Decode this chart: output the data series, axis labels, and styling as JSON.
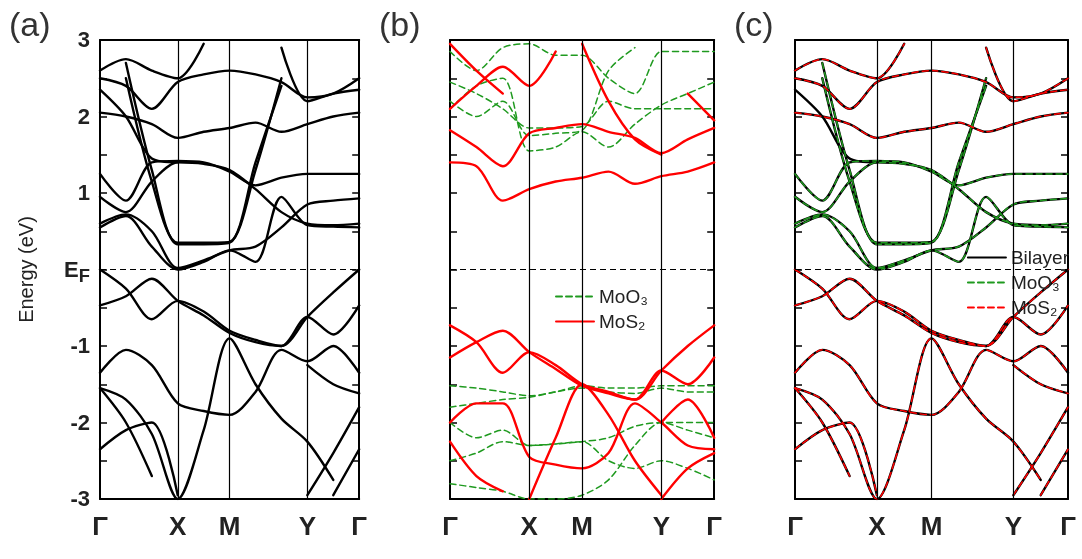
{
  "chart_data": [
    {
      "type": "line",
      "title": "(a)",
      "ylabel": "Energy (eV)",
      "categories": [
        "Γ",
        null,
        null,
        "X",
        null,
        "M",
        null,
        null,
        "Y",
        null,
        "Γ"
      ],
      "ylim": [
        -3,
        3
      ],
      "yticks": [
        -3,
        {
          "value": -2.5,
          "label": null
        },
        -2,
        {
          "value": -1.5,
          "label": null
        },
        -1,
        {
          "value": -0.5,
          "label": null
        },
        {
          "value": 0,
          "label": "E$_{F}$"
        },
        {
          "value": 0.5,
          "label": null
        },
        1,
        {
          "value": 1.5,
          "label": null
        },
        2,
        {
          "value": 2.5,
          "label": null
        },
        3
      ],
      "grid": false,
      "marker": "none",
      "line_style": "solid",
      "ref_lines": [
        {
          "axis": "x",
          "value": "X",
          "label": null,
          "color": "#000000",
          "line_style": "solid"
        },
        {
          "axis": "x",
          "value": "M",
          "label": null,
          "color": "#000000",
          "line_style": "solid"
        },
        {
          "axis": "x",
          "value": "Y",
          "label": null,
          "color": "#000000",
          "line_style": "solid"
        },
        {
          "axis": "y",
          "value": 0,
          "label": null,
          "color": "#000000",
          "line_style": "dashed"
        }
      ],
      "series": [
        {
          "color": "#000000",
          "values": [
            0,
            -0.25,
            -0.65,
            -0.41,
            -0.55,
            -0.8,
            -0.92,
            -1.0,
            -0.62,
            -0.85,
            -0.47
          ]
        },
        {
          "color": "#000000",
          "values": [
            -0.47,
            -0.35,
            -0.12,
            -0.41,
            -0.6,
            -0.83,
            -0.95,
            -1.0,
            -0.62,
            -0.3,
            0
          ]
        },
        {
          "color": "#000000",
          "values": [
            -1.35,
            -1.05,
            -1.25,
            -1.75,
            -1.85,
            -1.9,
            -1.6,
            -1.05,
            -1.2,
            -1.0,
            -1.35
          ]
        },
        {
          "color": "#000000",
          "values": [
            -1.55,
            -1.7,
            -2.15,
            -3,
            -2.1,
            -0.9,
            -1.5,
            -1.95,
            -2.25,
            -2.75,
            null
          ]
        },
        {
          "color": "#000000",
          "values": [
            -1.55,
            -2.0,
            -2.7,
            null,
            null,
            null,
            null,
            null,
            null,
            null,
            null
          ]
        },
        {
          "color": "#000000",
          "values": [
            -2.35,
            -2.1,
            -2.0,
            -2.95,
            null,
            null,
            null,
            null,
            null,
            null,
            null
          ]
        },
        {
          "color": "#000000",
          "values": [
            null,
            null,
            null,
            null,
            null,
            null,
            null,
            null,
            -2.95,
            -2.4,
            -1.8
          ]
        },
        {
          "color": "#000000",
          "values": [
            null,
            null,
            null,
            null,
            null,
            null,
            null,
            null,
            null,
            -2.95,
            -2.35
          ]
        },
        {
          "color": "#000000",
          "values": [
            null,
            null,
            null,
            null,
            null,
            null,
            null,
            null,
            -1.25,
            -1.5,
            -1.62
          ]
        },
        {
          "color": "#000000",
          "values": [
            0.55,
            0.7,
            0.3,
            0,
            0.1,
            0.25,
            0.1,
            0.95,
            0.58,
            0.56,
            0.55
          ]
        },
        {
          "color": "#000000",
          "values": [
            0.6,
            0.72,
            0.5,
            0.02,
            0.12,
            0.25,
            0.3,
            0.55,
            0.85,
            0.9,
            0.93
          ]
        },
        {
          "color": "#000000",
          "values": [
            0.95,
            0.75,
            1.15,
            1.4,
            1.38,
            1.3,
            1.05,
            0.75,
            0.6,
            0.58,
            0.6
          ]
        },
        {
          "color": "#000000",
          "values": [
            1.25,
            0.9,
            1.4,
            1.42,
            1.4,
            1.28,
            1.1,
            1.2,
            1.25,
            1.25,
            1.25
          ]
        },
        {
          "color": "#000000",
          "values": [
            null,
            2.7,
            1.3,
            0.33,
            0.33,
            0.35,
            1.3,
            2.5,
            null,
            null,
            null
          ]
        },
        {
          "color": "#000000",
          "values": [
            null,
            2.5,
            1.15,
            0.35,
            0.35,
            0.36,
            1.4,
            2.4,
            null,
            null,
            null
          ]
        },
        {
          "color": "#000000",
          "values": [
            2.05,
            2.0,
            1.9,
            1.72,
            1.8,
            1.85,
            1.92,
            1.8,
            1.9,
            2.0,
            2.05
          ]
        },
        {
          "color": "#000000",
          "values": [
            2.35,
            2.0,
            1.45,
            1.4,
            null,
            null,
            null,
            null,
            null,
            null,
            null
          ]
        },
        {
          "color": "#000000",
          "values": [
            2.5,
            2.4,
            2.1,
            2.45,
            2.55,
            2.6,
            2.55,
            2.45,
            2.25,
            2.3,
            2.5
          ]
        },
        {
          "color": "#000000",
          "values": [
            2.6,
            2.75,
            2.6,
            2.5,
            2.95,
            null,
            null,
            2.9,
            2.2,
            2.3,
            2.35
          ]
        }
      ]
    },
    {
      "type": "line",
      "title": "(b)",
      "categories": [
        "Γ",
        null,
        null,
        "X",
        null,
        "M",
        null,
        null,
        "Y",
        null,
        "Γ"
      ],
      "ylim": [
        -3,
        3
      ],
      "yticks": [
        -3,
        {
          "value": -2.5,
          "label": null
        },
        -2,
        {
          "value": -1.5,
          "label": null
        },
        -1,
        {
          "value": -0.5,
          "label": null
        },
        {
          "value": 0,
          "label": null
        },
        {
          "value": 0.5,
          "label": null
        },
        1,
        {
          "value": 1.5,
          "label": null
        },
        2,
        {
          "value": 2.5,
          "label": null
        },
        3
      ],
      "tick_labels": "x",
      "grid": false,
      "marker": "none",
      "legend": "center",
      "ref_lines": [
        {
          "axis": "x",
          "value": "X",
          "label": null,
          "color": "#000000",
          "line_style": "solid"
        },
        {
          "axis": "x",
          "value": "M",
          "label": null,
          "color": "#000000",
          "line_style": "solid"
        },
        {
          "axis": "x",
          "value": "Y",
          "label": null,
          "color": "#000000",
          "line_style": "solid"
        },
        {
          "axis": "y",
          "value": 0,
          "label": null,
          "color": "#000000",
          "line_style": "dashed"
        }
      ],
      "series": [
        {
          "name": "MoO₃",
          "color": "#1f9a1f",
          "line_style": "dashed",
          "values": [
            2.85,
            2.6,
            2.9,
            2.95,
            2.8,
            2.8,
            2.5,
            2.3,
            2.85,
            2.85,
            2.85
          ]
        },
        {
          "color": "#1f9a1f",
          "line_style": "dashed",
          "values": [
            2.45,
            2.3,
            2.1,
            1.85,
            1.85,
            1.87,
            2.2,
            2.1,
            2.1,
            2.1,
            2.1
          ]
        },
        {
          "color": "#1f9a1f",
          "line_style": "dashed",
          "values": [
            2.1,
            2.4,
            2.5,
            1.55,
            1.6,
            1.8,
            1.6,
            1.9,
            2.15,
            2.3,
            2.45
          ]
        },
        {
          "color": "#1f9a1f",
          "line_style": "dashed",
          "values": [
            2.2,
            2.0,
            2.2,
            1.75,
            1.78,
            1.82,
            2.6,
            2.9,
            null,
            null,
            null
          ]
        },
        {
          "color": "#1f9a1f",
          "line_style": "dashed",
          "values": [
            -1.52,
            -1.55,
            -1.6,
            -1.65,
            -1.6,
            -1.52,
            -1.55,
            -1.55,
            -1.52,
            -1.52,
            -1.52
          ]
        },
        {
          "color": "#1f9a1f",
          "line_style": "dashed",
          "values": [
            -1.8,
            -1.75,
            -1.7,
            -1.67,
            -1.6,
            -1.55,
            -1.6,
            -1.62,
            -1.55,
            -1.6,
            -1.6
          ]
        },
        {
          "color": "#1f9a1f",
          "line_style": "dashed",
          "values": [
            -2.0,
            -2.2,
            -2.1,
            -2.3,
            -2.28,
            -2.25,
            -2.2,
            -2.05,
            -2.0,
            -2.0,
            -2.0
          ]
        },
        {
          "color": "#1f9a1f",
          "line_style": "dashed",
          "values": [
            -2.5,
            -2.4,
            -2.25,
            -2.3,
            -2.28,
            -2.25,
            -2.5,
            -2.6,
            -2.5,
            -2.6,
            -2.75
          ]
        },
        {
          "color": "#1f9a1f",
          "line_style": "dashed",
          "values": [
            -2.8,
            -2.85,
            -2.9,
            -3,
            -3,
            -2.95,
            -2.75,
            -2.3,
            -2.0,
            -2.1,
            -2.2
          ]
        },
        {
          "name": "MoS₂",
          "color": "#ff0000",
          "line_style": "solid",
          "values": [
            -0.73,
            -0.95,
            -1.35,
            -1.08,
            -1.25,
            -1.5,
            -1.6,
            -1.7,
            -1.32,
            -1.5,
            -1.15
          ]
        },
        {
          "color": "#ff0000",
          "line_style": "solid",
          "values": [
            -1.15,
            -0.95,
            -0.8,
            -1.08,
            -1.3,
            -1.52,
            -1.62,
            -1.7,
            -1.32,
            -1.0,
            -0.73
          ]
        },
        {
          "color": "#ff0000",
          "line_style": "solid",
          "values": [
            -2.0,
            -1.75,
            -1.75,
            -2.45,
            -2.55,
            -2.6,
            -2.4,
            -1.75,
            -2.0,
            -2.3,
            -2.35
          ]
        },
        {
          "color": "#ff0000",
          "line_style": "solid",
          "values": [
            null,
            null,
            null,
            -3,
            -2.2,
            -1.5,
            -1.9,
            -2.5,
            -2.95,
            null,
            null
          ]
        },
        {
          "color": "#ff0000",
          "line_style": "solid",
          "values": [
            null,
            null,
            null,
            null,
            null,
            null,
            null,
            null,
            -2.0,
            -1.7,
            -2.2
          ]
        },
        {
          "color": "#ff0000",
          "line_style": "solid",
          "values": [
            -2.25,
            -2.7,
            -2.9,
            null,
            null,
            null,
            null,
            null,
            null,
            null,
            null
          ]
        },
        {
          "color": "#ff0000",
          "line_style": "solid",
          "values": [
            null,
            null,
            null,
            null,
            null,
            null,
            null,
            null,
            -3,
            -2.6,
            -2.4
          ]
        },
        {
          "color": "#ff0000",
          "line_style": "solid",
          "values": [
            1.4,
            1.35,
            0.9,
            1.05,
            1.15,
            1.2,
            1.28,
            1.12,
            1.22,
            1.28,
            1.4
          ]
        },
        {
          "color": "#ff0000",
          "line_style": "solid",
          "values": [
            1.82,
            1.6,
            1.35,
            1.78,
            1.85,
            1.9,
            1.8,
            1.72,
            1.52,
            1.7,
            1.85
          ]
        },
        {
          "color": "#ff0000",
          "line_style": "solid",
          "values": [
            2.1,
            2.4,
            2.65,
            2.4,
            2.85,
            null,
            null,
            null,
            null,
            2.3,
            1.95
          ]
        },
        {
          "color": "#ff0000",
          "line_style": "solid",
          "values": [
            2.95,
            2.6,
            2.3,
            null,
            null,
            null,
            null,
            null,
            null,
            null,
            null
          ]
        },
        {
          "color": "#ff0000",
          "line_style": "solid",
          "values": [
            null,
            null,
            null,
            null,
            null,
            2.95,
            2.2,
            1.7,
            1.5,
            null,
            null
          ]
        }
      ]
    },
    {
      "type": "line",
      "title": "(c)",
      "categories": [
        "Γ",
        null,
        null,
        "X",
        null,
        "M",
        null,
        null,
        "Y",
        null,
        "Γ"
      ],
      "ylim": [
        -3,
        3
      ],
      "yticks": [
        -3,
        {
          "value": -2.5,
          "label": null
        },
        -2,
        {
          "value": -1.5,
          "label": null
        },
        -1,
        {
          "value": -0.5,
          "label": null
        },
        {
          "value": 0,
          "label": null
        },
        {
          "value": 0.5,
          "label": null
        },
        1,
        {
          "value": 1.5,
          "label": null
        },
        2,
        {
          "value": 2.5,
          "label": null
        },
        3
      ],
      "tick_labels": "x",
      "grid": false,
      "marker": "none",
      "legend": "right",
      "ref_lines": [
        {
          "axis": "x",
          "value": "X",
          "label": null,
          "color": "#000000",
          "line_style": "solid"
        },
        {
          "axis": "x",
          "value": "M",
          "label": null,
          "color": "#000000",
          "line_style": "solid"
        },
        {
          "axis": "x",
          "value": "Y",
          "label": null,
          "color": "#000000",
          "line_style": "solid"
        },
        {
          "axis": "y",
          "value": 0,
          "label": null,
          "color": "#000000",
          "line_style": "dashed"
        }
      ],
      "series": [
        {
          "name": "Bilayer",
          "color": "#000000",
          "line_style": "solid",
          "values": [
            0,
            -0.25,
            -0.65,
            -0.41,
            -0.55,
            -0.8,
            -0.92,
            -1.0,
            -0.62,
            -0.85,
            -0.47
          ]
        },
        {
          "color": "#000000",
          "line_style": "solid",
          "values": [
            -0.47,
            -0.35,
            -0.12,
            -0.41,
            -0.6,
            -0.83,
            -0.95,
            -1.0,
            -0.62,
            -0.3,
            0
          ]
        },
        {
          "color": "#000000",
          "line_style": "solid",
          "values": [
            -1.35,
            -1.05,
            -1.25,
            -1.75,
            -1.85,
            -1.9,
            -1.6,
            -1.05,
            -1.2,
            -1.0,
            -1.35
          ]
        },
        {
          "color": "#000000",
          "line_style": "solid",
          "values": [
            -1.55,
            -1.7,
            -2.15,
            -3,
            -2.1,
            -0.9,
            -1.5,
            -1.95,
            -2.25,
            -2.75,
            null
          ]
        },
        {
          "color": "#000000",
          "line_style": "solid",
          "values": [
            -1.55,
            -2.0,
            -2.7,
            null,
            null,
            null,
            null,
            null,
            null,
            null,
            null
          ]
        },
        {
          "color": "#000000",
          "line_style": "solid",
          "values": [
            -2.35,
            -2.1,
            -2.0,
            -2.95,
            null,
            null,
            null,
            null,
            null,
            null,
            null
          ]
        },
        {
          "color": "#000000",
          "line_style": "solid",
          "values": [
            null,
            null,
            null,
            null,
            null,
            null,
            null,
            null,
            -2.95,
            -2.4,
            -1.8
          ]
        },
        {
          "color": "#000000",
          "line_style": "solid",
          "values": [
            null,
            null,
            null,
            null,
            null,
            null,
            null,
            null,
            null,
            -2.95,
            -2.35
          ]
        },
        {
          "color": "#000000",
          "line_style": "solid",
          "values": [
            null,
            null,
            null,
            null,
            null,
            null,
            null,
            null,
            -1.25,
            -1.5,
            -1.62
          ]
        },
        {
          "color": "#000000",
          "line_style": "solid",
          "values": [
            0.55,
            0.7,
            0.3,
            0,
            0.1,
            0.25,
            0.1,
            0.95,
            0.58,
            0.56,
            0.55
          ]
        },
        {
          "color": "#000000",
          "line_style": "solid",
          "values": [
            0.6,
            0.72,
            0.5,
            0.02,
            0.12,
            0.25,
            0.3,
            0.55,
            0.85,
            0.9,
            0.93
          ]
        },
        {
          "color": "#000000",
          "line_style": "solid",
          "values": [
            0.95,
            0.75,
            1.15,
            1.4,
            1.38,
            1.3,
            1.05,
            0.75,
            0.6,
            0.58,
            0.6
          ]
        },
        {
          "color": "#000000",
          "line_style": "solid",
          "values": [
            1.25,
            0.9,
            1.4,
            1.42,
            1.4,
            1.28,
            1.1,
            1.2,
            1.25,
            1.25,
            1.25
          ]
        },
        {
          "color": "#000000",
          "line_style": "solid",
          "values": [
            null,
            2.7,
            1.3,
            0.33,
            0.33,
            0.35,
            1.3,
            2.5,
            null,
            null,
            null
          ]
        },
        {
          "color": "#000000",
          "line_style": "solid",
          "values": [
            null,
            2.5,
            1.15,
            0.35,
            0.35,
            0.36,
            1.4,
            2.4,
            null,
            null,
            null
          ]
        },
        {
          "color": "#000000",
          "line_style": "solid",
          "values": [
            2.05,
            2.0,
            1.9,
            1.72,
            1.8,
            1.85,
            1.92,
            1.8,
            1.9,
            2.0,
            2.05
          ]
        },
        {
          "color": "#000000",
          "line_style": "solid",
          "values": [
            2.35,
            2.0,
            1.45,
            1.4,
            null,
            null,
            null,
            null,
            null,
            null,
            null
          ]
        },
        {
          "color": "#000000",
          "line_style": "solid",
          "values": [
            2.5,
            2.4,
            2.1,
            2.45,
            2.55,
            2.6,
            2.55,
            2.45,
            2.25,
            2.3,
            2.5
          ]
        },
        {
          "color": "#000000",
          "line_style": "solid",
          "values": [
            2.6,
            2.75,
            2.6,
            2.5,
            2.95,
            null,
            null,
            2.9,
            2.2,
            2.3,
            2.35
          ]
        },
        {
          "name": "MoO₃",
          "color": "#1f9a1f",
          "line_style": "dashed",
          "values": [
            0.55,
            0.7,
            0.3,
            0,
            0.1,
            0.25,
            0.1,
            0.95,
            0.58,
            0.56,
            0.55
          ]
        },
        {
          "color": "#1f9a1f",
          "line_style": "dashed",
          "values": [
            0.6,
            0.72,
            0.5,
            0.02,
            0.12,
            0.25,
            0.3,
            0.55,
            0.85,
            0.9,
            0.93
          ]
        },
        {
          "color": "#1f9a1f",
          "line_style": "dashed",
          "values": [
            0.95,
            0.75,
            1.15,
            1.4,
            1.38,
            1.3,
            1.05,
            0.75,
            0.6,
            0.58,
            0.6
          ]
        },
        {
          "color": "#1f9a1f",
          "line_style": "dashed",
          "values": [
            1.25,
            0.9,
            1.4,
            1.42,
            1.4,
            1.28,
            1.1,
            1.2,
            1.25,
            1.25,
            1.25
          ]
        },
        {
          "color": "#1f9a1f",
          "line_style": "dashed",
          "values": [
            null,
            2.7,
            1.3,
            0.33,
            0.33,
            0.35,
            1.3,
            2.5,
            null,
            null,
            null
          ]
        },
        {
          "color": "#1f9a1f",
          "line_style": "dashed",
          "values": [
            null,
            2.5,
            1.15,
            0.35,
            0.35,
            0.36,
            1.4,
            2.4,
            null,
            null,
            null
          ]
        },
        {
          "name": "MoS₂",
          "color": "#ff0000",
          "line_style": "dashed",
          "values": [
            0,
            -0.25,
            -0.65,
            -0.41,
            -0.55,
            -0.8,
            -0.92,
            -1.0,
            -0.62,
            -0.85,
            -0.47
          ]
        },
        {
          "color": "#ff0000",
          "line_style": "dashed",
          "values": [
            -0.47,
            -0.35,
            -0.12,
            -0.41,
            -0.6,
            -0.83,
            -0.95,
            -1.0,
            -0.62,
            -0.3,
            0
          ]
        },
        {
          "color": "#ff0000",
          "line_style": "dashed",
          "values": [
            -1.35,
            -1.05,
            -1.25,
            -1.75,
            -1.85,
            -1.9,
            -1.6,
            -1.05,
            -1.2,
            -1.0,
            -1.35
          ]
        },
        {
          "color": "#ff0000",
          "line_style": "dashed",
          "values": [
            -1.55,
            -1.7,
            -2.15,
            -3,
            -2.1,
            -0.9,
            -1.5,
            -1.95,
            -2.25,
            -2.75,
            null
          ]
        },
        {
          "color": "#ff0000",
          "line_style": "dashed",
          "values": [
            -1.55,
            -2.0,
            -2.7,
            null,
            null,
            null,
            null,
            null,
            null,
            null,
            null
          ]
        },
        {
          "color": "#ff0000",
          "line_style": "dashed",
          "values": [
            -2.35,
            -2.1,
            -2.0,
            -2.95,
            null,
            null,
            null,
            null,
            null,
            null,
            null
          ]
        },
        {
          "color": "#ff0000",
          "line_style": "dashed",
          "values": [
            null,
            null,
            null,
            null,
            null,
            null,
            null,
            null,
            -2.95,
            -2.4,
            -1.8
          ]
        },
        {
          "color": "#ff0000",
          "line_style": "dashed",
          "values": [
            null,
            null,
            null,
            null,
            null,
            null,
            null,
            null,
            null,
            -2.95,
            -2.35
          ]
        },
        {
          "color": "#ff0000",
          "line_style": "dashed",
          "values": [
            null,
            null,
            null,
            null,
            null,
            null,
            null,
            null,
            -1.25,
            -1.5,
            -1.62
          ]
        },
        {
          "color": "#ff0000",
          "line_style": "dashed",
          "values": [
            2.05,
            2.0,
            1.9,
            1.72,
            1.8,
            1.85,
            1.92,
            1.8,
            1.9,
            2.0,
            2.05
          ]
        },
        {
          "color": "#ff0000",
          "line_style": "dashed",
          "values": [
            2.5,
            2.4,
            2.1,
            2.45,
            2.55,
            2.6,
            2.55,
            2.45,
            2.25,
            2.3,
            2.5
          ]
        },
        {
          "color": "#ff0000",
          "line_style": "dashed",
          "values": [
            2.6,
            2.75,
            2.6,
            2.5,
            2.95,
            null,
            null,
            2.9,
            2.2,
            2.3,
            2.35
          ]
        }
      ]
    }
  ]
}
